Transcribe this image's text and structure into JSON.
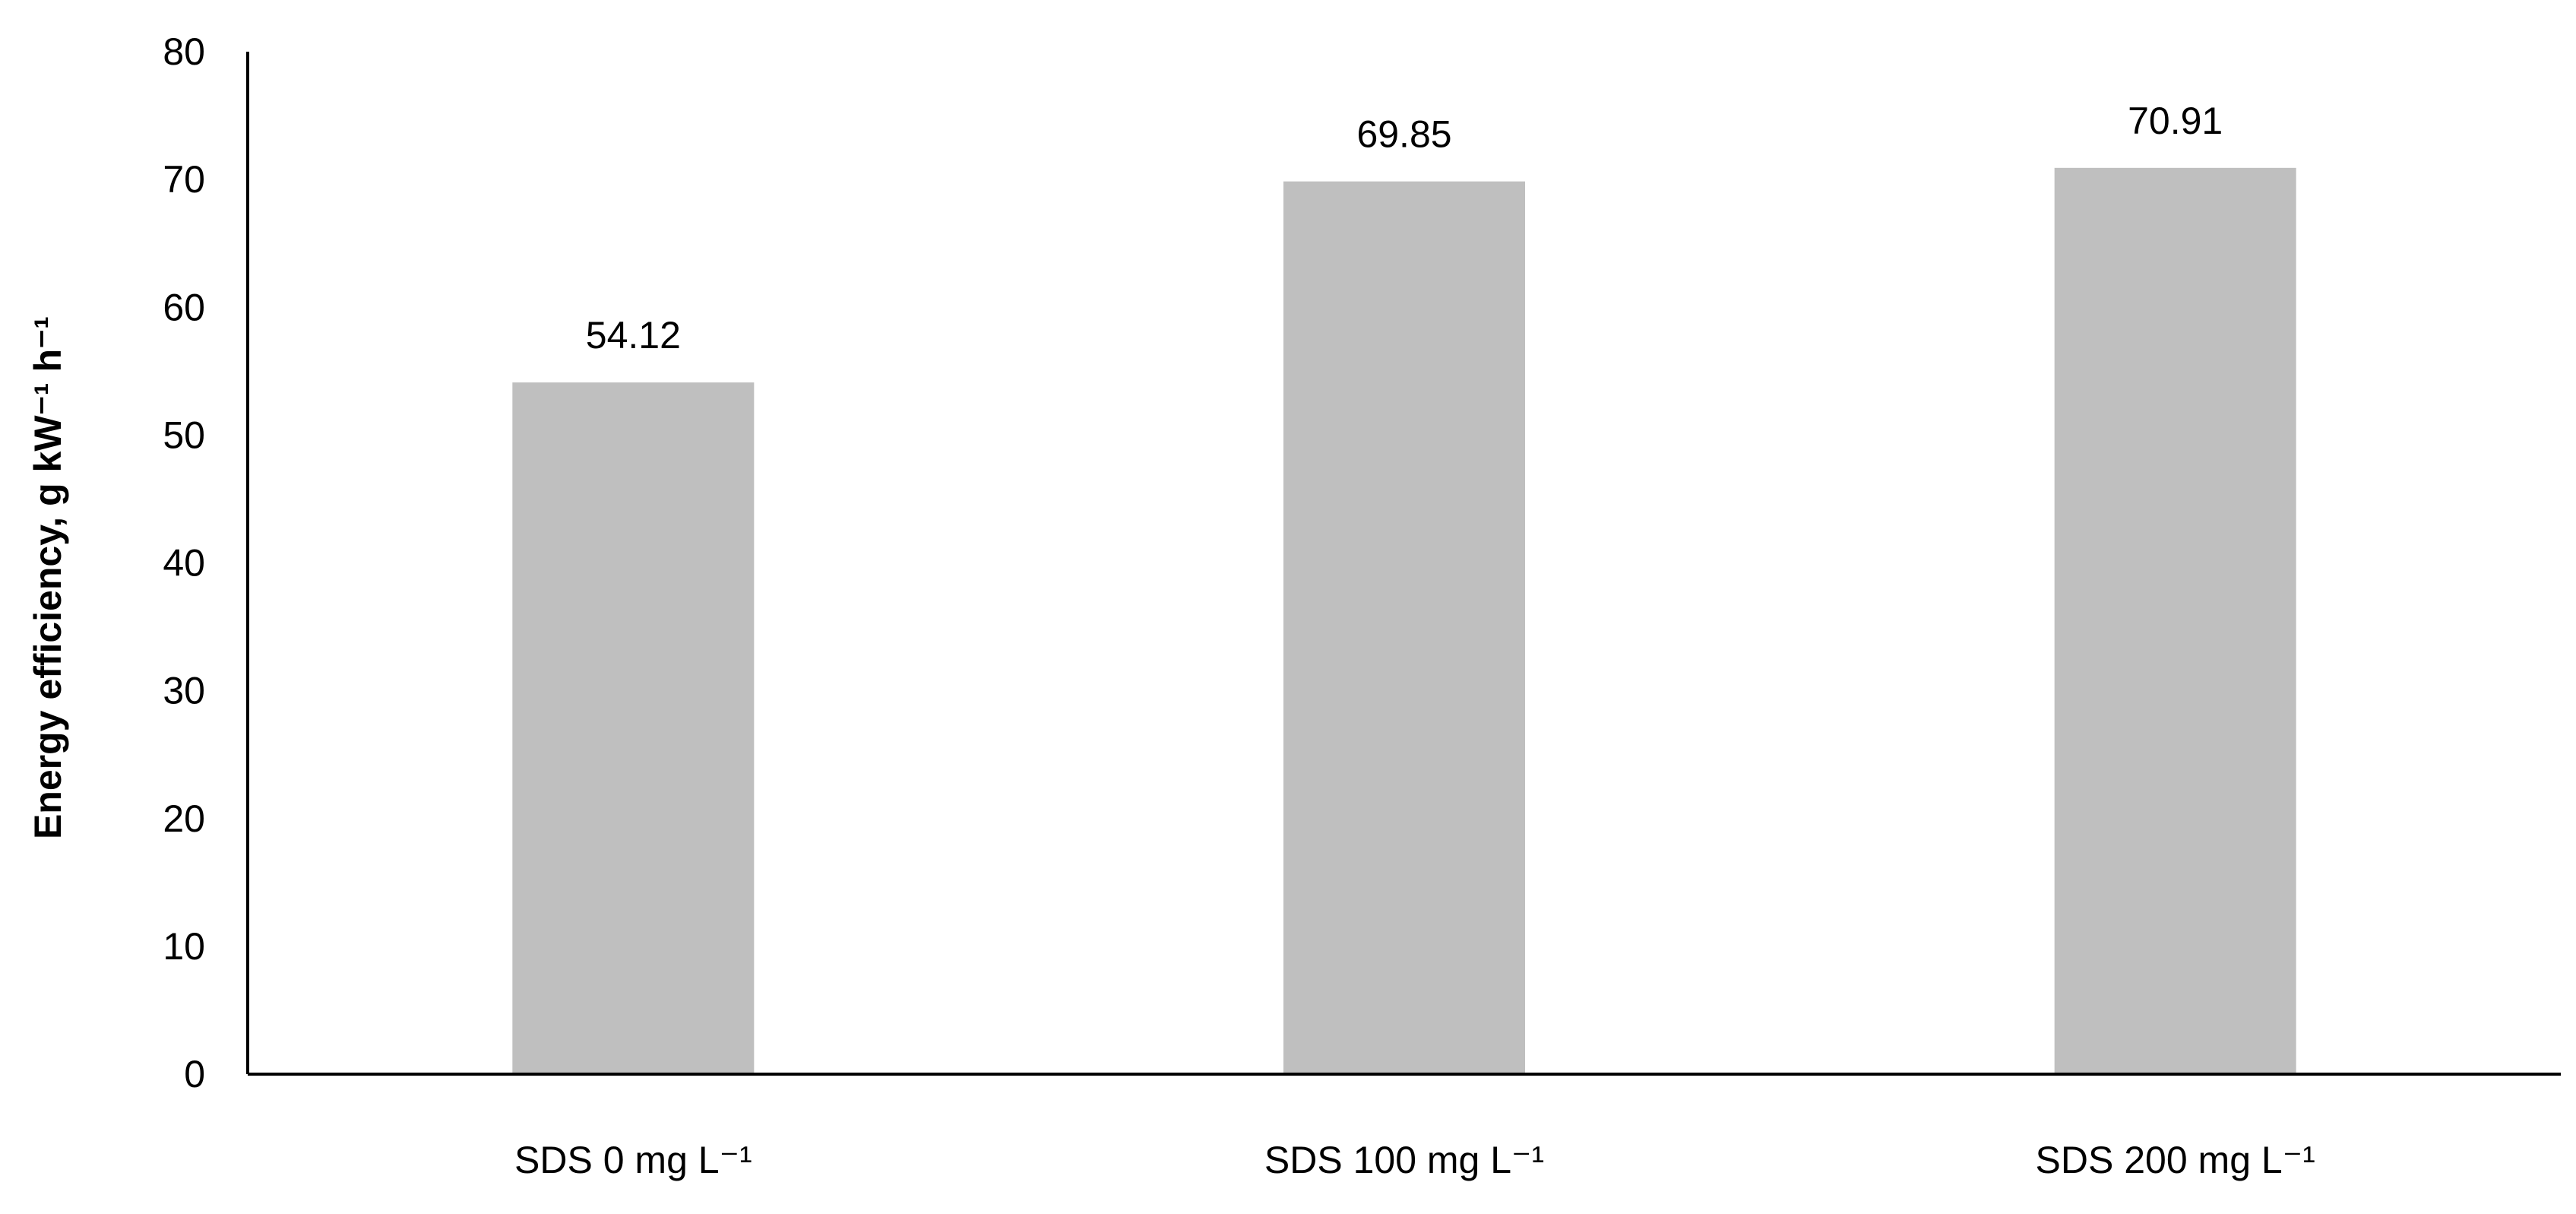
{
  "chart_data": {
    "type": "bar",
    "categories": [
      "SDS 0 mg L⁻¹",
      "SDS 100 mg L⁻¹",
      "SDS 200 mg L⁻¹"
    ],
    "values": [
      54.12,
      69.85,
      70.91
    ],
    "data_labels": [
      "54.12",
      "69.85",
      "70.91"
    ],
    "ylabel": "Energy efficiency, g kW⁻¹ h⁻¹",
    "ylim": [
      0,
      80
    ],
    "yticks": [
      "0",
      "10",
      "20",
      "30",
      "40",
      "50",
      "60",
      "70",
      "80"
    ],
    "grid": false,
    "legend": "none",
    "bar_color": "#bfbfbf"
  }
}
